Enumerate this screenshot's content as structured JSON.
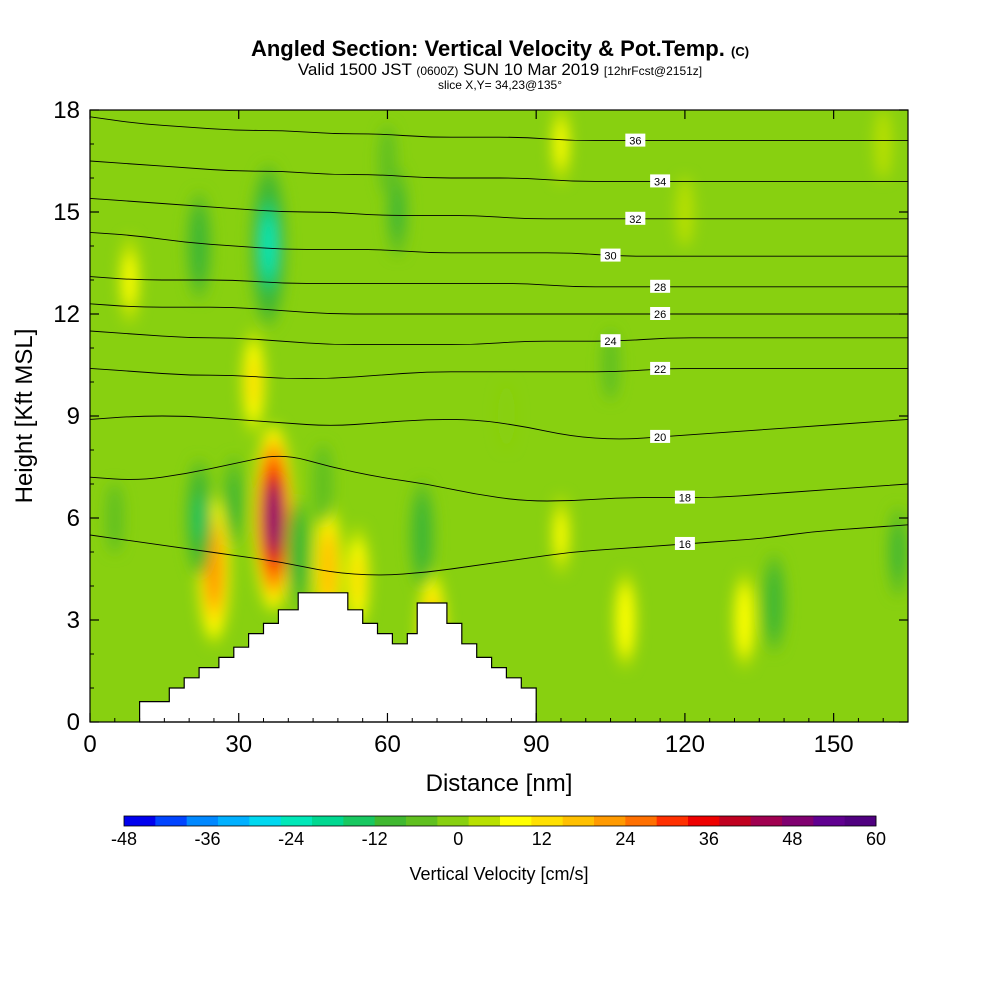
{
  "header": {
    "title": "Angled Section: Vertical Velocity & Pot.Temp.",
    "title_unit": "(C)",
    "valid_prefix": "Valid 1500 JST",
    "valid_utc": "(0600Z)",
    "valid_date": "SUN 10 Mar 2019",
    "forecast": "[12hrFcst@2151z]",
    "slice": "slice X,Y= 34,23@135°"
  },
  "chart_data": {
    "type": "heatmap",
    "xlabel": "Distance [nm]",
    "ylabel": "Height [Kft MSL]",
    "xlim": [
      0,
      165
    ],
    "ylim": [
      0,
      18
    ],
    "x_ticks": [
      0,
      30,
      60,
      90,
      120,
      150
    ],
    "y_ticks": [
      0,
      3,
      6,
      9,
      12,
      15,
      18
    ],
    "colorbar": {
      "label": "Vertical Velocity [cm/s]",
      "range": [
        -48,
        60
      ],
      "tick_values": [
        -48,
        -36,
        -24,
        -12,
        0,
        12,
        24,
        36,
        48,
        60
      ],
      "colors": [
        "#0000ee",
        "#0044ff",
        "#0088ff",
        "#00b0ff",
        "#00d8f0",
        "#00e8b8",
        "#00d890",
        "#18c860",
        "#40b830",
        "#60c020",
        "#88d010",
        "#b8e000",
        "#ffff00",
        "#ffe000",
        "#ffc000",
        "#ff9a00",
        "#ff7000",
        "#ff3000",
        "#ee0000",
        "#c00020",
        "#a00050",
        "#800070",
        "#600090",
        "#500080"
      ]
    },
    "wind_features": [
      {
        "x": 37,
        "y": 6.0,
        "value": 50
      },
      {
        "x": 25,
        "y": 4.5,
        "value": 22
      },
      {
        "x": 48,
        "y": 4.5,
        "value": 18
      },
      {
        "x": 33,
        "y": 10.0,
        "value": 12
      },
      {
        "x": 54,
        "y": 4.2,
        "value": 12
      },
      {
        "x": 69,
        "y": 2.5,
        "value": 18
      },
      {
        "x": 108,
        "y": 3.0,
        "value": 10
      },
      {
        "x": 132,
        "y": 3.0,
        "value": 10
      },
      {
        "x": 8,
        "y": 13.0,
        "value": 8
      },
      {
        "x": 95,
        "y": 5.5,
        "value": 6
      },
      {
        "x": 95,
        "y": 17.0,
        "value": 6
      },
      {
        "x": 160,
        "y": 17.0,
        "value": 4
      },
      {
        "x": 120,
        "y": 15.0,
        "value": 4
      },
      {
        "x": 36,
        "y": 14.0,
        "value": -24
      },
      {
        "x": 22,
        "y": 14.0,
        "value": -12
      },
      {
        "x": 22,
        "y": 6.0,
        "value": -14
      },
      {
        "x": 29,
        "y": 6.5,
        "value": -8
      },
      {
        "x": 47,
        "y": 7.0,
        "value": -6
      },
      {
        "x": 62,
        "y": 15.0,
        "value": -8
      },
      {
        "x": 42,
        "y": 5.0,
        "value": -12
      },
      {
        "x": 67,
        "y": 5.5,
        "value": -12
      },
      {
        "x": 60,
        "y": 16.5,
        "value": -4
      },
      {
        "x": 105,
        "y": 10.5,
        "value": -4
      },
      {
        "x": 138,
        "y": 3.5,
        "value": -10
      },
      {
        "x": 163,
        "y": 5.0,
        "value": -8
      },
      {
        "x": 5,
        "y": 6.0,
        "value": -4
      },
      {
        "x": 84,
        "y": 9.0,
        "value": -3
      }
    ],
    "terrain": [
      [
        10,
        0
      ],
      [
        10,
        0.6
      ],
      [
        16,
        0.6
      ],
      [
        16,
        1.0
      ],
      [
        19,
        1.0
      ],
      [
        19,
        1.3
      ],
      [
        22,
        1.3
      ],
      [
        22,
        1.6
      ],
      [
        26,
        1.6
      ],
      [
        26,
        1.9
      ],
      [
        29,
        1.9
      ],
      [
        29,
        2.2
      ],
      [
        32,
        2.2
      ],
      [
        32,
        2.6
      ],
      [
        35,
        2.6
      ],
      [
        35,
        2.9
      ],
      [
        38,
        2.9
      ],
      [
        38,
        3.3
      ],
      [
        42,
        3.3
      ],
      [
        42,
        3.8
      ],
      [
        52,
        3.8
      ],
      [
        52,
        3.3
      ],
      [
        55,
        3.3
      ],
      [
        55,
        2.9
      ],
      [
        58,
        2.9
      ],
      [
        58,
        2.6
      ],
      [
        61,
        2.6
      ],
      [
        61,
        2.3
      ],
      [
        64,
        2.3
      ],
      [
        64,
        2.6
      ],
      [
        66,
        2.6
      ],
      [
        66,
        3.5
      ],
      [
        72,
        3.5
      ],
      [
        72,
        2.9
      ],
      [
        75,
        2.9
      ],
      [
        75,
        2.3
      ],
      [
        78,
        2.3
      ],
      [
        78,
        1.9
      ],
      [
        81,
        1.9
      ],
      [
        81,
        1.6
      ],
      [
        84,
        1.6
      ],
      [
        84,
        1.3
      ],
      [
        87,
        1.3
      ],
      [
        87,
        1.0
      ],
      [
        90,
        1.0
      ],
      [
        90,
        0
      ]
    ],
    "isentropes": [
      {
        "value": 16,
        "label_x": 120,
        "y": [
          5.5,
          5.3,
          5.1,
          4.9,
          4.7,
          4.4,
          4.3,
          4.4,
          4.6,
          4.8,
          5.0,
          5.1,
          5.2,
          5.3,
          5.4,
          5.6,
          5.7,
          5.8
        ]
      },
      {
        "value": 18,
        "label_x": 120,
        "y": [
          7.2,
          7.1,
          7.3,
          7.6,
          7.9,
          7.5,
          7.2,
          7.0,
          6.7,
          6.5,
          6.5,
          6.6,
          6.6,
          6.6,
          6.7,
          6.8,
          6.9,
          7.0
        ]
      },
      {
        "value": 20,
        "label_x": 115,
        "y": [
          8.9,
          9.0,
          9.0,
          8.9,
          8.8,
          8.7,
          8.8,
          8.9,
          8.9,
          8.7,
          8.4,
          8.3,
          8.4,
          8.5,
          8.6,
          8.7,
          8.8,
          8.9
        ]
      },
      {
        "value": 22,
        "label_x": 115,
        "y": [
          10.4,
          10.3,
          10.2,
          10.2,
          10.1,
          10.1,
          10.2,
          10.3,
          10.3,
          10.3,
          10.3,
          10.3,
          10.4,
          10.4,
          10.4,
          10.4,
          10.4,
          10.4
        ]
      },
      {
        "value": 24,
        "label_x": 105,
        "y": [
          11.5,
          11.4,
          11.3,
          11.3,
          11.2,
          11.1,
          11.1,
          11.1,
          11.1,
          11.2,
          11.2,
          11.2,
          11.3,
          11.3,
          11.3,
          11.3,
          11.3,
          11.3
        ]
      },
      {
        "value": 26,
        "label_x": 115,
        "y": [
          12.3,
          12.2,
          12.2,
          12.2,
          12.1,
          12.0,
          12.0,
          12.0,
          12.0,
          12.0,
          12.0,
          12.0,
          12.0,
          12.0,
          12.0,
          12.0,
          12.0,
          12.0
        ]
      },
      {
        "value": 28,
        "label_x": 115,
        "y": [
          13.1,
          13.0,
          13.0,
          13.0,
          12.9,
          12.9,
          12.9,
          12.9,
          12.9,
          12.9,
          12.8,
          12.8,
          12.8,
          12.8,
          12.8,
          12.8,
          12.8,
          12.8
        ]
      },
      {
        "value": 30,
        "label_x": 105,
        "y": [
          14.4,
          14.3,
          14.1,
          14.0,
          13.9,
          13.9,
          13.9,
          13.8,
          13.8,
          13.8,
          13.8,
          13.7,
          13.7,
          13.7,
          13.7,
          13.7,
          13.7,
          13.7
        ]
      },
      {
        "value": 32,
        "label_x": 110,
        "y": [
          15.4,
          15.3,
          15.2,
          15.1,
          15.0,
          15.0,
          14.9,
          14.9,
          14.9,
          14.8,
          14.8,
          14.8,
          14.8,
          14.8,
          14.8,
          14.8,
          14.8,
          14.8
        ]
      },
      {
        "value": 34,
        "label_x": 115,
        "y": [
          16.5,
          16.4,
          16.3,
          16.2,
          16.2,
          16.1,
          16.1,
          16.0,
          16.0,
          16.0,
          15.9,
          15.9,
          15.9,
          15.9,
          15.9,
          15.9,
          15.9,
          15.9
        ]
      },
      {
        "value": 36,
        "label_x": 110,
        "y": [
          17.8,
          17.6,
          17.5,
          17.4,
          17.4,
          17.3,
          17.3,
          17.2,
          17.2,
          17.2,
          17.1,
          17.1,
          17.1,
          17.1,
          17.1,
          17.1,
          17.1,
          17.1
        ]
      }
    ]
  }
}
